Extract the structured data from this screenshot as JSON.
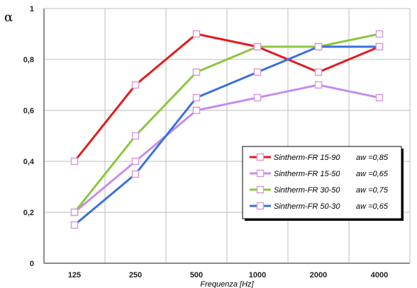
{
  "chart_data": {
    "type": "line",
    "title": "",
    "ylabel": "α",
    "xlabel": "Frequenza [Hz]",
    "categories": [
      "125",
      "250",
      "500",
      "1000",
      "2000",
      "4000"
    ],
    "ylim": [
      0,
      1
    ],
    "yticks": [
      "0",
      "0,2",
      "0,4",
      "0,6",
      "0,8",
      "1"
    ],
    "grid": true,
    "legend_position": "bottom-right",
    "series": [
      {
        "name": "Sintherm-FR 15-90",
        "aw": "aw =0,85",
        "color": "#e41a1c",
        "values": [
          0.4,
          0.7,
          0.9,
          0.85,
          0.75,
          0.85
        ]
      },
      {
        "name": "Sintherm-FR 15-50",
        "aw": "aw =0,65",
        "color": "#c58df0",
        "values": [
          0.2,
          0.4,
          0.6,
          0.65,
          0.7,
          0.65
        ]
      },
      {
        "name": "Sintherm-FR 30-50",
        "aw": "aw =0,75",
        "color": "#8cc63f",
        "values": [
          0.2,
          0.5,
          0.75,
          0.85,
          0.85,
          0.9
        ]
      },
      {
        "name": "Sintherm-FR 50-30",
        "aw": "aw =0,65",
        "color": "#3b6fe0",
        "values": [
          0.15,
          0.35,
          0.65,
          0.75,
          0.85,
          0.85
        ]
      }
    ],
    "marker_fill": "#ffffff",
    "marker_stroke": "#d99bd9"
  }
}
